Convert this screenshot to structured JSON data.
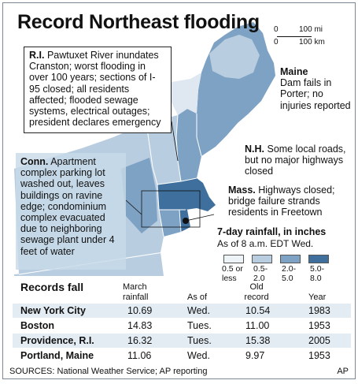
{
  "title": "Record Northeast flooding",
  "scale": {
    "mi_zero": "0",
    "mi_label": "100 mi",
    "km_zero": "0",
    "km_label": "100 km"
  },
  "callouts": {
    "ri": {
      "head": "R.I.",
      "text": "Pawtuxet River inundates Cranston; worst flooding in over 100 years; sections of I-95 closed; all residents affected; flooded sewage systems, electrical outages; president declares emergency"
    },
    "maine": {
      "head": "Maine",
      "text": "Dam fails in Porter; no injuries reported"
    },
    "nh": {
      "head": "N.H.",
      "text": "Some local roads, but no major highways closed"
    },
    "ma": {
      "head": "Mass.",
      "text": "Highways closed; bridge failure strands residents in Freetown"
    },
    "ct": {
      "head": "Conn.",
      "text": "Apartment complex parking lot washed out, leaves buildings on ravine edge; condominium complex evacuated due to neighboring sewage plant under 4 feet of water"
    }
  },
  "legend": {
    "title": "7-day rainfall, in inches",
    "subtitle": "As of 8 a.m. EDT Wed.",
    "items": [
      {
        "line1": "0.5 or",
        "line2": "less",
        "color": "#eef3f8"
      },
      {
        "line1": "0.5-",
        "line2": "2.0",
        "color": "#b9cde0"
      },
      {
        "line1": "2.0-",
        "line2": "5.0",
        "color": "#7ea2c4"
      },
      {
        "line1": "5.0-",
        "line2": "8.0",
        "color": "#3f6f9c"
      }
    ]
  },
  "table": {
    "title": "Records fall",
    "headers": {
      "rain1": "March",
      "rain2": "rainfall",
      "asof": "As of",
      "old1": "Old",
      "old2": "record",
      "year": "Year"
    },
    "rows": [
      {
        "city": "New York City",
        "rain": "10.69",
        "asof": "Wed.",
        "old": "10.54",
        "year": "1983"
      },
      {
        "city": "Boston",
        "rain": "14.83",
        "asof": "Tues.",
        "old": "11.00",
        "year": "1953"
      },
      {
        "city": "Providence, R.I.",
        "rain": "16.32",
        "asof": "Tues.",
        "old": "15.38",
        "year": "2005"
      },
      {
        "city": "Portland, Maine",
        "rain": "11.06",
        "asof": "Wed.",
        "old": "9.97",
        "year": "1953"
      }
    ]
  },
  "footer": {
    "sources": "SOURCES: National Weather Service; AP reporting",
    "credit": "AP"
  }
}
